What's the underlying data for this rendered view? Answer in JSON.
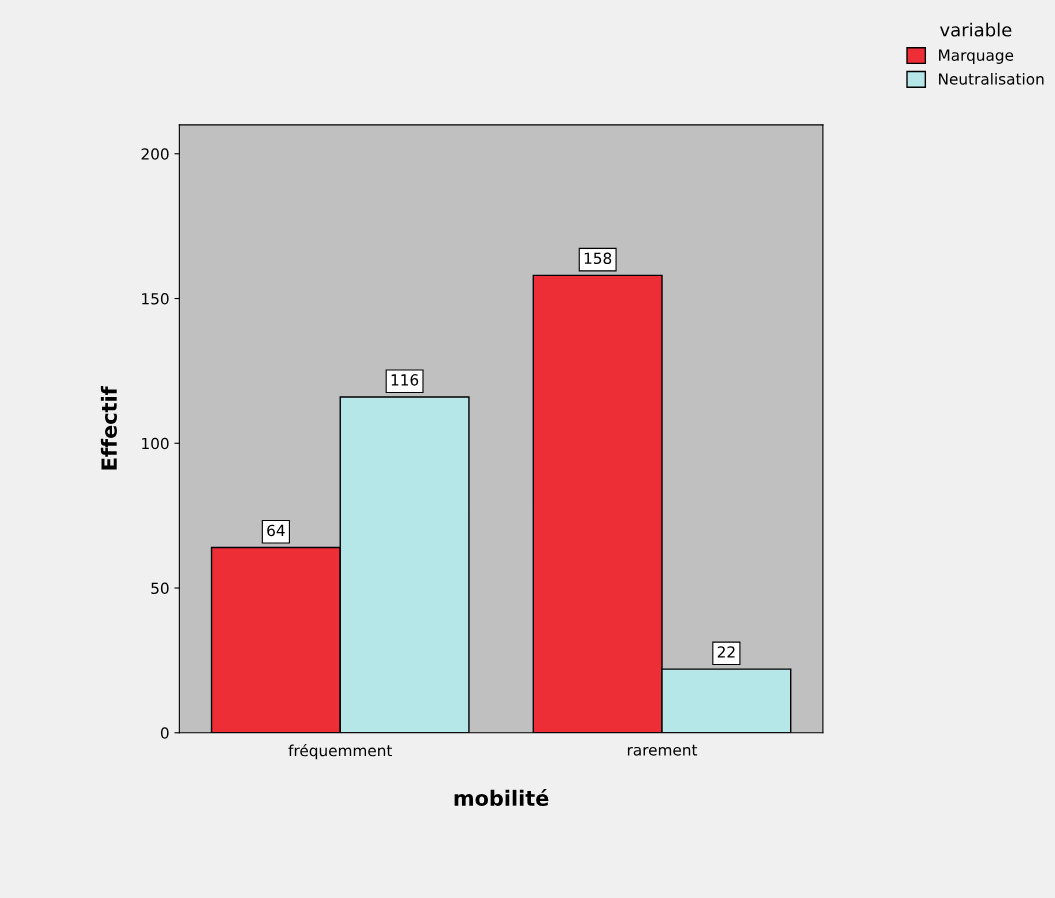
{
  "chart_data": {
    "type": "bar",
    "xlabel": "mobilité",
    "ylabel": "Effectif",
    "legend_title": "variable",
    "categories": [
      "fréquemment",
      "rarement"
    ],
    "series": [
      {
        "name": "Marquage",
        "color": "#ee2e37",
        "values": [
          64,
          158
        ]
      },
      {
        "name": "Neutralisation",
        "color": "#b5e6e8",
        "values": [
          116,
          22
        ]
      }
    ],
    "ylim": [
      0,
      210
    ],
    "yticks": [
      0,
      50,
      100,
      150,
      200
    ],
    "grid": false,
    "legend": "top right",
    "data_labels": true
  }
}
